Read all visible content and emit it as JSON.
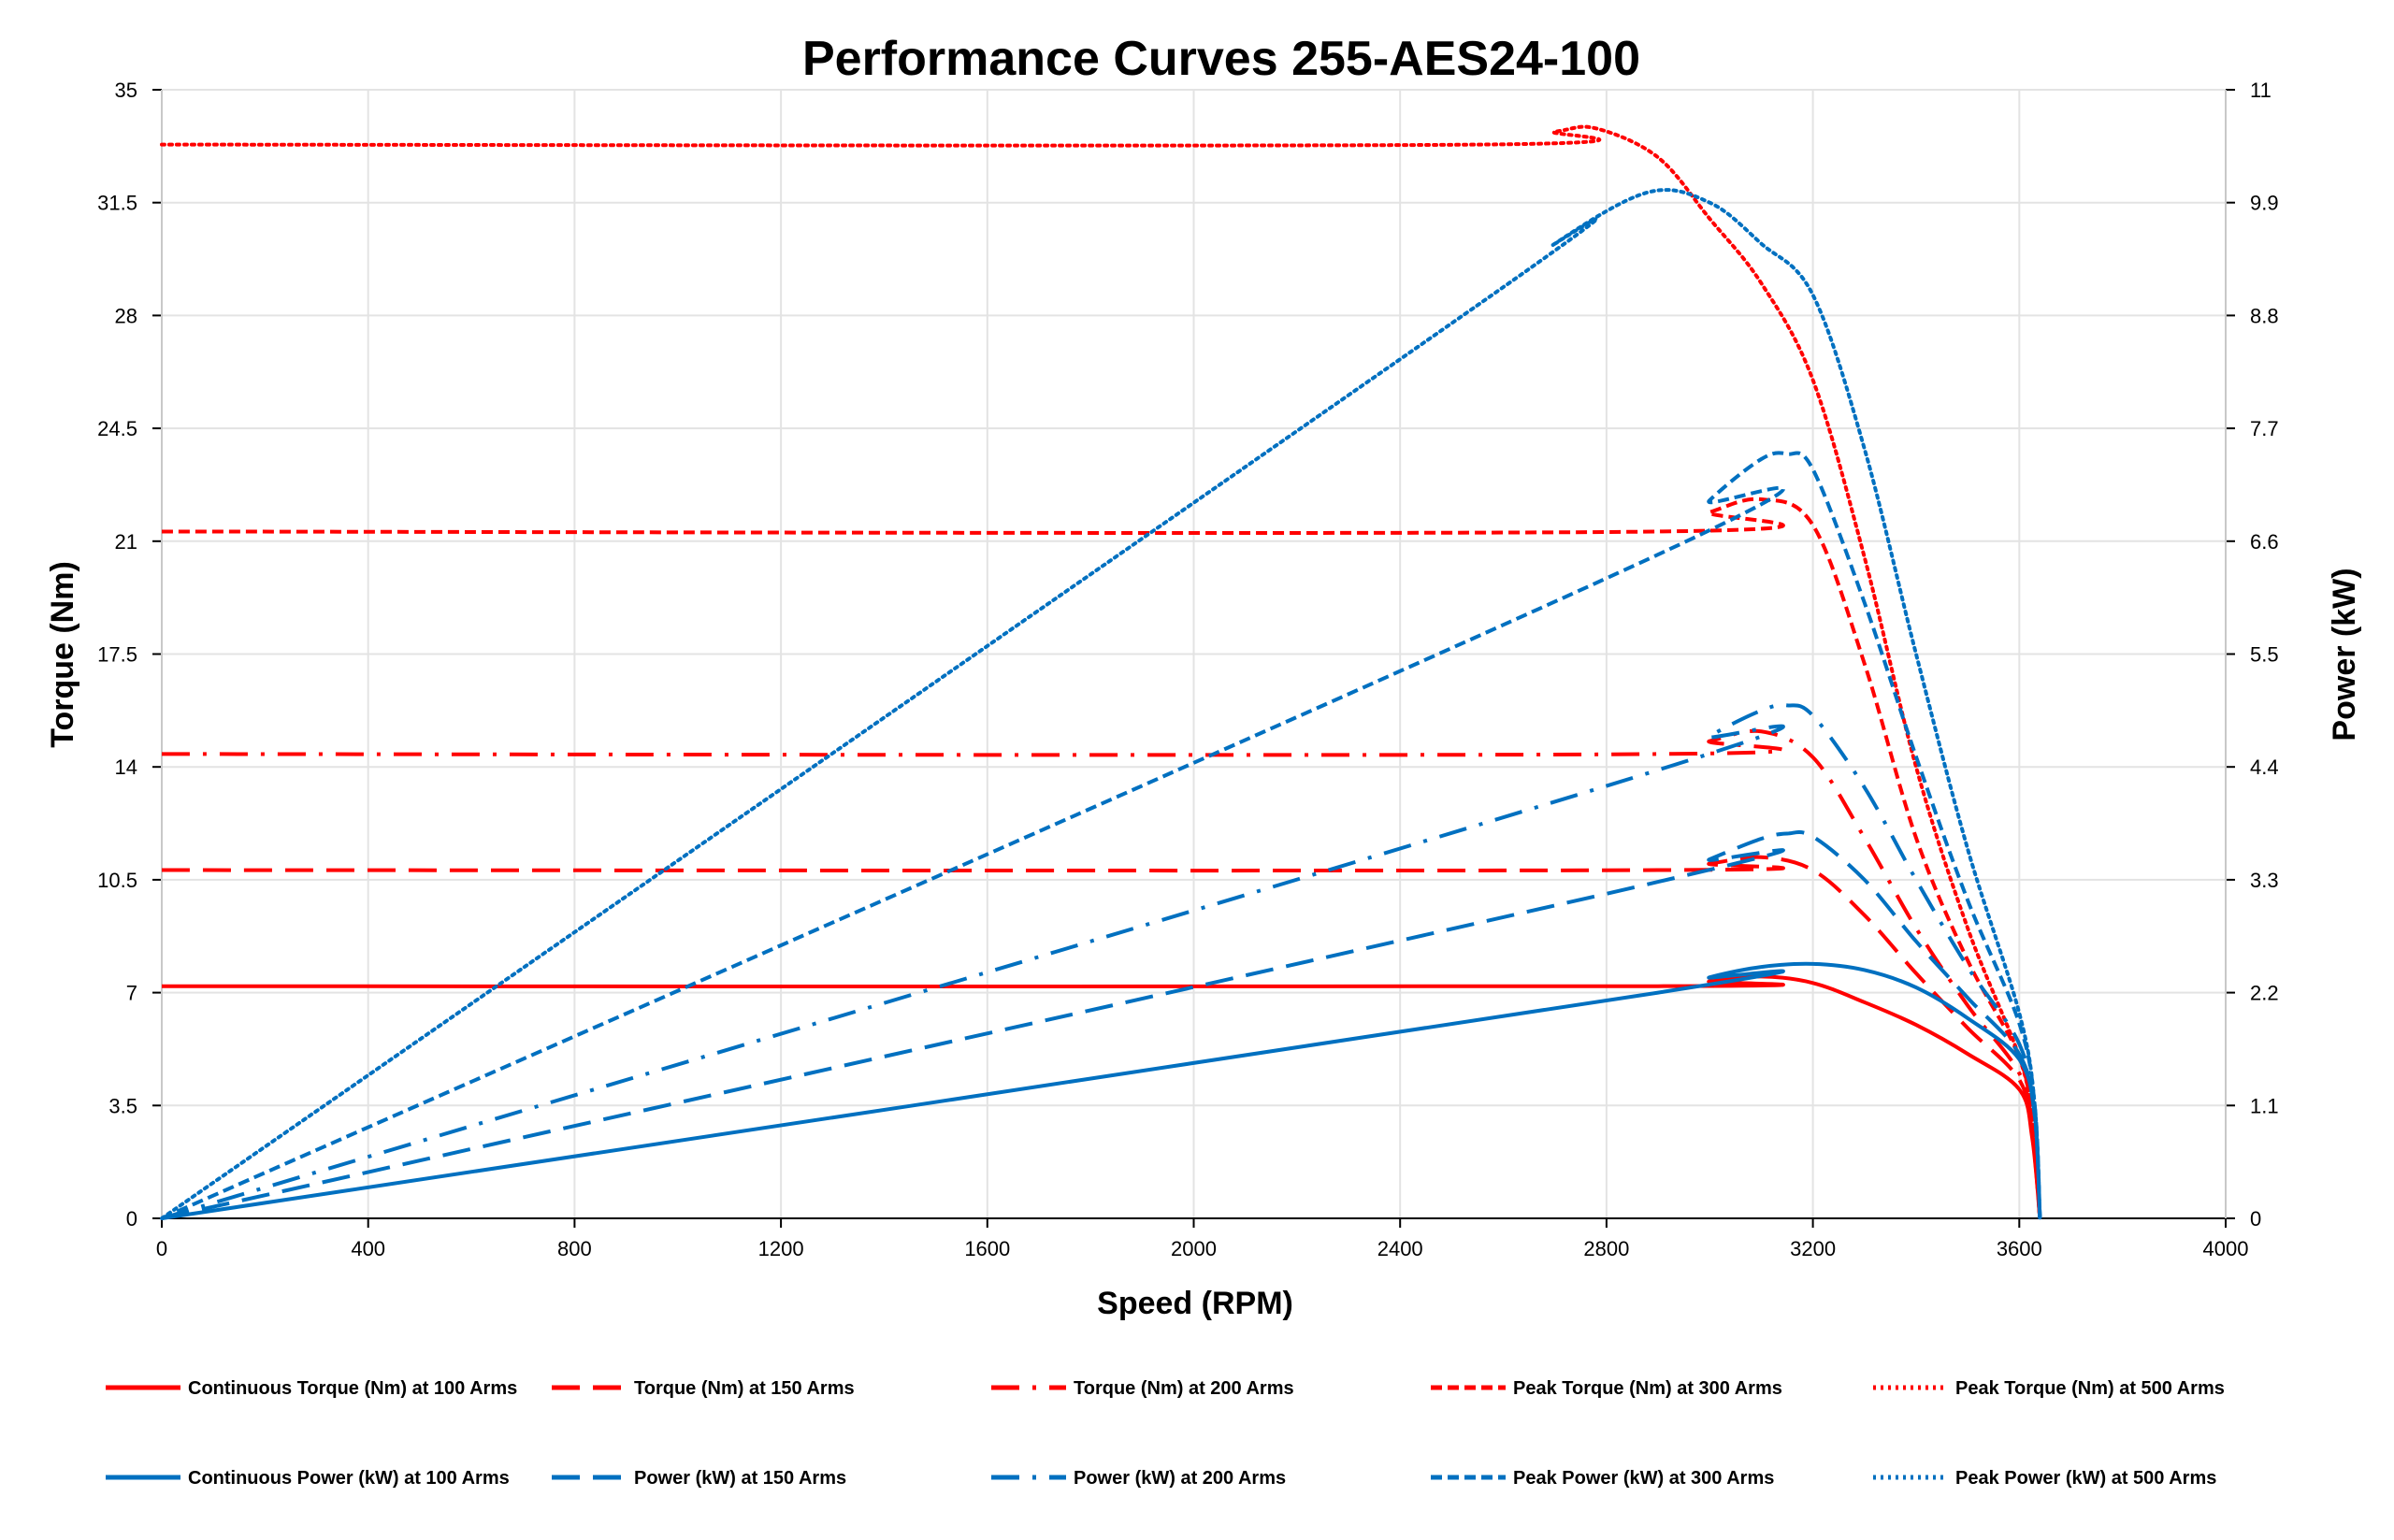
{
  "chart_data": {
    "type": "line",
    "title": "Performance Curves 255-AES24-100",
    "xlabel": "Speed (RPM)",
    "ylabel": "Torque (Nm)",
    "y2label": "Power (kW)",
    "xlim": [
      0,
      4000
    ],
    "ylim": [
      0,
      35
    ],
    "y2lim": [
      0,
      11
    ],
    "xticks": [
      0,
      400,
      800,
      1200,
      1600,
      2000,
      2400,
      2800,
      3200,
      3600,
      4000
    ],
    "yticks": [
      "0",
      "3.5",
      "7",
      "10.5",
      "14",
      "17.5",
      "21",
      "24.5",
      "28",
      "31.5",
      "35"
    ],
    "y2ticks": [
      "0",
      "1.1",
      "2.2",
      "3.3",
      "4.4",
      "5.5",
      "6.6",
      "7.7",
      "8.8",
      "9.9",
      "11"
    ],
    "grid": true,
    "legend": "bottom",
    "colors": {
      "torque": "#ff0000",
      "power": "#0070c0"
    },
    "series": [
      {
        "name": "Continuous Torque (Nm) at 100 Arms",
        "axis": "left",
        "style": "solid",
        "color": "#ff0000",
        "x": [
          0,
          2900,
          3000,
          3100,
          3200,
          3300,
          3400,
          3500,
          3600,
          3625,
          3640
        ],
        "y": [
          7.2,
          7.2,
          7.35,
          7.5,
          7.3,
          6.7,
          6.0,
          5.1,
          4.0,
          2.5,
          0
        ]
      },
      {
        "name": "Torque (Nm) at 150 Arms",
        "axis": "left",
        "style": "dash",
        "color": "#ff0000",
        "x": [
          0,
          2900,
          3000,
          3100,
          3200,
          3300,
          3400,
          3500,
          3600,
          3625,
          3640
        ],
        "y": [
          10.8,
          10.8,
          11.0,
          11.2,
          10.8,
          9.4,
          7.6,
          5.9,
          4.3,
          2.6,
          0
        ]
      },
      {
        "name": "Torque (Nm) at 200 Arms",
        "axis": "left",
        "style": "dash-dot",
        "color": "#ff0000",
        "x": [
          0,
          2900,
          3000,
          3100,
          3200,
          3300,
          3400,
          3500,
          3600,
          3625,
          3640
        ],
        "y": [
          14.4,
          14.4,
          14.8,
          15.1,
          14.3,
          11.8,
          9.0,
          6.6,
          4.5,
          2.7,
          0
        ]
      },
      {
        "name": "Peak Torque (Nm) at 300 Arms",
        "axis": "left",
        "style": "short-dash",
        "color": "#ff0000",
        "x": [
          0,
          2900,
          3000,
          3100,
          3200,
          3300,
          3400,
          3500,
          3600,
          3625,
          3640
        ],
        "y": [
          21.3,
          21.3,
          21.9,
          22.3,
          21.5,
          17.2,
          11.8,
          8.0,
          5.0,
          2.9,
          0
        ]
      },
      {
        "name": "Peak Torque (Nm) at 500 Arms",
        "axis": "left",
        "style": "dot",
        "color": "#ff0000",
        "x": [
          0,
          2550,
          2700,
          2780,
          2900,
          3000,
          3100,
          3200,
          3300,
          3400,
          3500,
          3600,
          3625,
          3640
        ],
        "y": [
          33.3,
          33.3,
          33.7,
          33.8,
          32.9,
          31.0,
          29.0,
          26.0,
          20.5,
          14.0,
          9.0,
          5.0,
          3.0,
          0
        ]
      },
      {
        "name": "Continuous Power (kW) at 100 Arms",
        "axis": "right",
        "style": "solid",
        "color": "#0070c0",
        "x": [
          0,
          2900,
          3000,
          3100,
          3200,
          3300,
          3400,
          3500,
          3600,
          3630,
          3640
        ],
        "y": [
          0,
          2.2,
          2.35,
          2.45,
          2.48,
          2.42,
          2.25,
          1.95,
          1.55,
          1.0,
          0
        ]
      },
      {
        "name": "Power (kW) at 150 Arms",
        "axis": "right",
        "style": "dash",
        "color": "#0070c0",
        "x": [
          0,
          2900,
          3000,
          3100,
          3150,
          3200,
          3300,
          3400,
          3500,
          3600,
          3630,
          3640
        ],
        "y": [
          0,
          3.28,
          3.5,
          3.7,
          3.75,
          3.72,
          3.3,
          2.7,
          2.15,
          1.6,
          1.0,
          0
        ]
      },
      {
        "name": "Power (kW) at 200 Arms",
        "axis": "right",
        "style": "dash-dot",
        "color": "#0070c0",
        "x": [
          0,
          2900,
          3000,
          3100,
          3150,
          3200,
          3300,
          3400,
          3500,
          3600,
          3630,
          3640
        ],
        "y": [
          0,
          4.37,
          4.7,
          4.95,
          5.0,
          4.9,
          4.2,
          3.3,
          2.45,
          1.7,
          1.0,
          0
        ]
      },
      {
        "name": "Peak Power (kW) at 300 Arms",
        "axis": "right",
        "style": "short-dash",
        "color": "#0070c0",
        "x": [
          0,
          2900,
          3000,
          3100,
          3150,
          3200,
          3300,
          3400,
          3500,
          3600,
          3630,
          3640
        ],
        "y": [
          0,
          6.47,
          7.0,
          7.4,
          7.45,
          7.3,
          6.0,
          4.5,
          3.1,
          1.9,
          1.1,
          0
        ]
      },
      {
        "name": "Peak Power (kW) at 500 Arms",
        "axis": "right",
        "style": "dot",
        "color": "#0070c0",
        "x": [
          0,
          2550,
          2700,
          2880,
          3000,
          3100,
          3200,
          3300,
          3400,
          3500,
          3600,
          3630,
          3640
        ],
        "y": [
          0,
          8.9,
          9.5,
          10.0,
          9.9,
          9.5,
          9.0,
          7.5,
          5.5,
          3.6,
          2.0,
          1.1,
          0
        ]
      }
    ]
  }
}
